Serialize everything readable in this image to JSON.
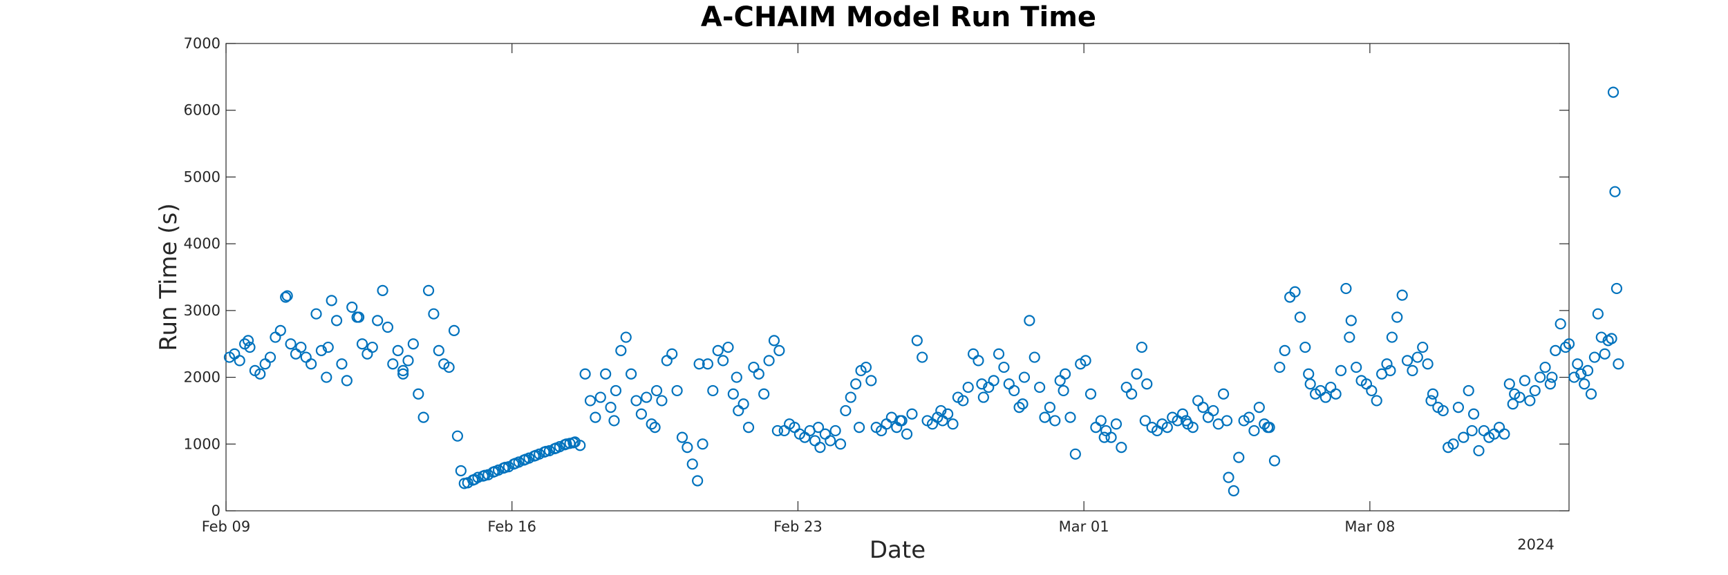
{
  "chart_data": {
    "type": "scatter",
    "title": "A-CHAIM Model Run Time",
    "xlabel": "Date",
    "ylabel": "Run Time (s)",
    "x_ticks": [
      "Feb 09",
      "Feb 16",
      "Feb 23",
      "Mar 01",
      "Mar 08"
    ],
    "x_tick_values": [
      "2024-02-09",
      "2024-02-16",
      "2024-02-23",
      "2024-03-01",
      "2024-03-08"
    ],
    "year_label": "2024",
    "xlim": [
      "2024-02-09",
      "2024-03-12T21:00"
    ],
    "ylim": [
      0,
      7000
    ],
    "y_ticks": [
      0,
      1000,
      2000,
      3000,
      4000,
      5000,
      6000,
      7000
    ],
    "grid": false,
    "marker_color": "#0072BD",
    "points": [
      [
        "2024-02-09T02:00",
        2300
      ],
      [
        "2024-02-09T05:00",
        2350
      ],
      [
        "2024-02-09T08:00",
        2250
      ],
      [
        "2024-02-09T11:00",
        2500
      ],
      [
        "2024-02-09T14:00",
        2450
      ],
      [
        "2024-02-09T17:00",
        2100
      ],
      [
        "2024-02-09T20:00",
        2050
      ],
      [
        "2024-02-09T23:00",
        2200
      ],
      [
        "2024-02-10T02:00",
        2300
      ],
      [
        "2024-02-10T05:00",
        2600
      ],
      [
        "2024-02-10T08:00",
        2700
      ],
      [
        "2024-02-10T11:00",
        3200
      ],
      [
        "2024-02-10T14:00",
        2500
      ],
      [
        "2024-02-10T17:00",
        2350
      ],
      [
        "2024-02-10T20:00",
        2450
      ],
      [
        "2024-02-10T23:00",
        2300
      ],
      [
        "2024-02-11T02:00",
        2200
      ],
      [
        "2024-02-11T05:00",
        2950
      ],
      [
        "2024-02-11T08:00",
        2400
      ],
      [
        "2024-02-11T11:00",
        2000
      ],
      [
        "2024-02-11T14:00",
        3150
      ],
      [
        "2024-02-11T17:00",
        2850
      ],
      [
        "2024-02-11T20:00",
        2200
      ],
      [
        "2024-02-11T23:00",
        1950
      ],
      [
        "2024-02-12T02:00",
        3050
      ],
      [
        "2024-02-12T05:00",
        2900
      ],
      [
        "2024-02-12T08:00",
        2500
      ],
      [
        "2024-02-12T11:00",
        2350
      ],
      [
        "2024-02-12T14:00",
        2450
      ],
      [
        "2024-02-12T17:00",
        2850
      ],
      [
        "2024-02-12T20:00",
        3300
      ],
      [
        "2024-02-12T23:00",
        2750
      ],
      [
        "2024-02-13T02:00",
        2200
      ],
      [
        "2024-02-13T05:00",
        2400
      ],
      [
        "2024-02-13T08:00",
        2050
      ],
      [
        "2024-02-13T11:00",
        2250
      ],
      [
        "2024-02-13T14:00",
        2500
      ],
      [
        "2024-02-13T17:00",
        1750
      ],
      [
        "2024-02-13T20:00",
        1400
      ],
      [
        "2024-02-13T23:00",
        3300
      ],
      [
        "2024-02-14T02:00",
        2950
      ],
      [
        "2024-02-14T05:00",
        2400
      ],
      [
        "2024-02-14T08:00",
        2200
      ],
      [
        "2024-02-14T11:00",
        2150
      ],
      [
        "2024-02-14T14:00",
        2700
      ],
      [
        "2024-02-14T16:00",
        1120
      ],
      [
        "2024-02-14T18:00",
        600
      ],
      [
        "2024-02-14T20:00",
        410
      ],
      [
        "2024-02-14T22:00",
        420
      ],
      [
        "2024-02-15T01:00",
        460
      ],
      [
        "2024-02-15T04:00",
        500
      ],
      [
        "2024-02-15T07:00",
        520
      ],
      [
        "2024-02-15T10:00",
        540
      ],
      [
        "2024-02-15T13:00",
        580
      ],
      [
        "2024-02-15T16:00",
        610
      ],
      [
        "2024-02-15T19:00",
        640
      ],
      [
        "2024-02-15T22:00",
        660
      ],
      [
        "2024-02-16T01:00",
        700
      ],
      [
        "2024-02-16T04:00",
        730
      ],
      [
        "2024-02-16T07:00",
        760
      ],
      [
        "2024-02-16T10:00",
        790
      ],
      [
        "2024-02-16T13:00",
        820
      ],
      [
        "2024-02-16T16:00",
        850
      ],
      [
        "2024-02-16T19:00",
        880
      ],
      [
        "2024-02-16T22:00",
        900
      ],
      [
        "2024-02-17T01:00",
        930
      ],
      [
        "2024-02-17T04:00",
        960
      ],
      [
        "2024-02-17T07:00",
        990
      ],
      [
        "2024-02-17T10:00",
        1010
      ],
      [
        "2024-02-17T13:00",
        1030
      ],
      [
        "2024-02-17T16:00",
        980
      ],
      [
        "2024-02-17T19:00",
        2050
      ],
      [
        "2024-02-17T22:00",
        1650
      ],
      [
        "2024-02-18T01:00",
        1400
      ],
      [
        "2024-02-18T04:00",
        1700
      ],
      [
        "2024-02-18T07:00",
        2050
      ],
      [
        "2024-02-18T10:00",
        1550
      ],
      [
        "2024-02-18T13:00",
        1800
      ],
      [
        "2024-02-18T16:00",
        2400
      ],
      [
        "2024-02-18T19:00",
        2600
      ],
      [
        "2024-02-18T22:00",
        2050
      ],
      [
        "2024-02-19T01:00",
        1650
      ],
      [
        "2024-02-19T04:00",
        1450
      ],
      [
        "2024-02-19T07:00",
        1700
      ],
      [
        "2024-02-19T10:00",
        1300
      ],
      [
        "2024-02-19T13:00",
        1800
      ],
      [
        "2024-02-19T16:00",
        1650
      ],
      [
        "2024-02-19T19:00",
        2250
      ],
      [
        "2024-02-19T22:00",
        2350
      ],
      [
        "2024-02-20T01:00",
        1800
      ],
      [
        "2024-02-20T04:00",
        1100
      ],
      [
        "2024-02-20T07:00",
        950
      ],
      [
        "2024-02-20T10:00",
        700
      ],
      [
        "2024-02-20T13:00",
        450
      ],
      [
        "2024-02-20T16:00",
        1000
      ],
      [
        "2024-02-20T19:00",
        2200
      ],
      [
        "2024-02-20T22:00",
        1800
      ],
      [
        "2024-02-21T01:00",
        2400
      ],
      [
        "2024-02-21T04:00",
        2250
      ],
      [
        "2024-02-21T07:00",
        2450
      ],
      [
        "2024-02-21T10:00",
        1750
      ],
      [
        "2024-02-21T13:00",
        1500
      ],
      [
        "2024-02-21T16:00",
        1600
      ],
      [
        "2024-02-21T19:00",
        1250
      ],
      [
        "2024-02-21T22:00",
        2150
      ],
      [
        "2024-02-22T01:00",
        2050
      ],
      [
        "2024-02-22T04:00",
        1750
      ],
      [
        "2024-02-22T07:00",
        2250
      ],
      [
        "2024-02-22T10:00",
        2550
      ],
      [
        "2024-02-22T13:00",
        2400
      ],
      [
        "2024-02-22T16:00",
        1200
      ],
      [
        "2024-02-22T19:00",
        1300
      ],
      [
        "2024-02-22T22:00",
        1250
      ],
      [
        "2024-02-23T01:00",
        1150
      ],
      [
        "2024-02-23T04:00",
        1100
      ],
      [
        "2024-02-23T07:00",
        1200
      ],
      [
        "2024-02-23T10:00",
        1050
      ],
      [
        "2024-02-23T13:00",
        950
      ],
      [
        "2024-02-23T16:00",
        1150
      ],
      [
        "2024-02-23T19:00",
        1050
      ],
      [
        "2024-02-23T22:00",
        1200
      ],
      [
        "2024-02-24T01:00",
        1000
      ],
      [
        "2024-02-24T04:00",
        1500
      ],
      [
        "2024-02-24T07:00",
        1700
      ],
      [
        "2024-02-24T10:00",
        1900
      ],
      [
        "2024-02-24T13:00",
        2100
      ],
      [
        "2024-02-24T16:00",
        2150
      ],
      [
        "2024-02-24T19:00",
        1950
      ],
      [
        "2024-02-24T22:00",
        1250
      ],
      [
        "2024-02-25T01:00",
        1200
      ],
      [
        "2024-02-25T04:00",
        1300
      ],
      [
        "2024-02-25T07:00",
        1400
      ],
      [
        "2024-02-25T10:00",
        1250
      ],
      [
        "2024-02-25T13:00",
        1350
      ],
      [
        "2024-02-25T16:00",
        1150
      ],
      [
        "2024-02-25T19:00",
        1450
      ],
      [
        "2024-02-25T22:00",
        2550
      ],
      [
        "2024-02-26T01:00",
        2300
      ],
      [
        "2024-02-26T04:00",
        1350
      ],
      [
        "2024-02-26T07:00",
        1300
      ],
      [
        "2024-02-26T10:00",
        1400
      ],
      [
        "2024-02-26T13:00",
        1350
      ],
      [
        "2024-02-26T16:00",
        1450
      ],
      [
        "2024-02-26T19:00",
        1300
      ],
      [
        "2024-02-26T22:00",
        1700
      ],
      [
        "2024-02-27T01:00",
        1650
      ],
      [
        "2024-02-27T04:00",
        1850
      ],
      [
        "2024-02-27T07:00",
        2350
      ],
      [
        "2024-02-27T10:00",
        2250
      ],
      [
        "2024-02-27T13:00",
        1700
      ],
      [
        "2024-02-27T16:00",
        1850
      ],
      [
        "2024-02-27T19:00",
        1950
      ],
      [
        "2024-02-27T22:00",
        2350
      ],
      [
        "2024-02-28T01:00",
        2150
      ],
      [
        "2024-02-28T04:00",
        1900
      ],
      [
        "2024-02-28T07:00",
        1800
      ],
      [
        "2024-02-28T10:00",
        1550
      ],
      [
        "2024-02-28T13:00",
        2000
      ],
      [
        "2024-02-28T16:00",
        2850
      ],
      [
        "2024-02-28T19:00",
        2300
      ],
      [
        "2024-02-28T22:00",
        1850
      ],
      [
        "2024-02-29T01:00",
        1400
      ],
      [
        "2024-02-29T04:00",
        1550
      ],
      [
        "2024-02-29T07:00",
        1350
      ],
      [
        "2024-02-29T10:00",
        1950
      ],
      [
        "2024-02-29T13:00",
        2050
      ],
      [
        "2024-02-29T16:00",
        1400
      ],
      [
        "2024-02-29T19:00",
        850
      ],
      [
        "2024-02-29T22:00",
        2200
      ],
      [
        "2024-03-01T01:00",
        2250
      ],
      [
        "2024-03-01T04:00",
        1750
      ],
      [
        "2024-03-01T07:00",
        1250
      ],
      [
        "2024-03-01T10:00",
        1350
      ],
      [
        "2024-03-01T13:00",
        1200
      ],
      [
        "2024-03-01T16:00",
        1100
      ],
      [
        "2024-03-01T19:00",
        1300
      ],
      [
        "2024-03-01T22:00",
        950
      ],
      [
        "2024-03-02T01:00",
        1850
      ],
      [
        "2024-03-02T04:00",
        1750
      ],
      [
        "2024-03-02T07:00",
        2050
      ],
      [
        "2024-03-02T10:00",
        2450
      ],
      [
        "2024-03-02T13:00",
        1900
      ],
      [
        "2024-03-02T16:00",
        1250
      ],
      [
        "2024-03-02T19:00",
        1200
      ],
      [
        "2024-03-02T22:00",
        1300
      ],
      [
        "2024-03-03T01:00",
        1250
      ],
      [
        "2024-03-03T04:00",
        1400
      ],
      [
        "2024-03-03T07:00",
        1350
      ],
      [
        "2024-03-03T10:00",
        1450
      ],
      [
        "2024-03-03T13:00",
        1300
      ],
      [
        "2024-03-03T16:00",
        1250
      ],
      [
        "2024-03-03T19:00",
        1650
      ],
      [
        "2024-03-03T22:00",
        1550
      ],
      [
        "2024-03-04T01:00",
        1400
      ],
      [
        "2024-03-04T04:00",
        1500
      ],
      [
        "2024-03-04T07:00",
        1300
      ],
      [
        "2024-03-04T10:00",
        1750
      ],
      [
        "2024-03-04T13:00",
        500
      ],
      [
        "2024-03-04T16:00",
        300
      ],
      [
        "2024-03-04T19:00",
        800
      ],
      [
        "2024-03-04T22:00",
        1350
      ],
      [
        "2024-03-05T01:00",
        1400
      ],
      [
        "2024-03-05T04:00",
        1200
      ],
      [
        "2024-03-05T07:00",
        1550
      ],
      [
        "2024-03-05T10:00",
        1300
      ],
      [
        "2024-03-05T13:00",
        1250
      ],
      [
        "2024-03-05T16:00",
        750
      ],
      [
        "2024-03-05T19:00",
        2150
      ],
      [
        "2024-03-05T22:00",
        2400
      ],
      [
        "2024-03-06T01:00",
        3200
      ],
      [
        "2024-03-06T04:00",
        3280
      ],
      [
        "2024-03-06T07:00",
        2900
      ],
      [
        "2024-03-06T10:00",
        2450
      ],
      [
        "2024-03-06T13:00",
        1900
      ],
      [
        "2024-03-06T16:00",
        1750
      ],
      [
        "2024-03-06T19:00",
        1800
      ],
      [
        "2024-03-06T22:00",
        1700
      ],
      [
        "2024-03-07T01:00",
        1850
      ],
      [
        "2024-03-07T04:00",
        1750
      ],
      [
        "2024-03-07T07:00",
        2100
      ],
      [
        "2024-03-07T10:00",
        3330
      ],
      [
        "2024-03-07T13:00",
        2850
      ],
      [
        "2024-03-07T16:00",
        2150
      ],
      [
        "2024-03-07T19:00",
        1950
      ],
      [
        "2024-03-07T22:00",
        1900
      ],
      [
        "2024-03-08T01:00",
        1800
      ],
      [
        "2024-03-08T04:00",
        1650
      ],
      [
        "2024-03-08T07:00",
        2050
      ],
      [
        "2024-03-08T10:00",
        2200
      ],
      [
        "2024-03-08T13:00",
        2600
      ],
      [
        "2024-03-08T16:00",
        2900
      ],
      [
        "2024-03-08T19:00",
        3230
      ],
      [
        "2024-03-08T22:00",
        2250
      ],
      [
        "2024-03-09T01:00",
        2100
      ],
      [
        "2024-03-09T04:00",
        2300
      ],
      [
        "2024-03-09T07:00",
        2450
      ],
      [
        "2024-03-09T10:00",
        2200
      ],
      [
        "2024-03-09T13:00",
        1750
      ],
      [
        "2024-03-09T16:00",
        1550
      ],
      [
        "2024-03-09T19:00",
        1500
      ],
      [
        "2024-03-09T22:00",
        950
      ],
      [
        "2024-03-10T01:00",
        1000
      ],
      [
        "2024-03-10T04:00",
        1550
      ],
      [
        "2024-03-10T07:00",
        1100
      ],
      [
        "2024-03-10T10:00",
        1800
      ],
      [
        "2024-03-10T13:00",
        1450
      ],
      [
        "2024-03-10T16:00",
        900
      ],
      [
        "2024-03-10T19:00",
        1200
      ],
      [
        "2024-03-10T22:00",
        1100
      ],
      [
        "2024-03-11T01:00",
        1150
      ],
      [
        "2024-03-11T04:00",
        1250
      ],
      [
        "2024-03-11T07:00",
        1150
      ],
      [
        "2024-03-11T10:00",
        1900
      ],
      [
        "2024-03-11T13:00",
        1750
      ],
      [
        "2024-03-11T16:00",
        1700
      ],
      [
        "2024-03-11T19:00",
        1950
      ],
      [
        "2024-03-11T22:00",
        1650
      ],
      [
        "2024-03-12T01:00",
        1800
      ],
      [
        "2024-03-12T04:00",
        2000
      ],
      [
        "2024-03-12T07:00",
        2150
      ],
      [
        "2024-03-12T10:00",
        1900
      ],
      [
        "2024-03-12T13:00",
        2400
      ],
      [
        "2024-03-12T16:00",
        2800
      ],
      [
        "2024-03-12T19:00",
        2450
      ],
      [
        "2024-03-12T21:00",
        2500
      ],
      [
        "2024-02-12T06:00",
        2900
      ],
      [
        "2024-02-10T12:00",
        3220
      ],
      [
        "2024-02-11T12:00",
        2450
      ],
      [
        "2024-02-13T08:00",
        2100
      ],
      [
        "2024-02-09T13:00",
        2550
      ],
      [
        "2024-02-15T02:00",
        470
      ],
      [
        "2024-02-15T08:00",
        530
      ],
      [
        "2024-02-15T14:00",
        590
      ],
      [
        "2024-02-15T20:00",
        650
      ],
      [
        "2024-02-16T02:00",
        710
      ],
      [
        "2024-02-16T08:00",
        770
      ],
      [
        "2024-02-16T14:00",
        830
      ],
      [
        "2024-02-16T20:00",
        890
      ],
      [
        "2024-02-17T02:00",
        940
      ],
      [
        "2024-02-17T08:00",
        1000
      ],
      [
        "2024-02-17T12:00",
        1020
      ],
      [
        "2024-02-18T12:00",
        1350
      ],
      [
        "2024-02-19T12:00",
        1250
      ],
      [
        "2024-02-20T14:00",
        2200
      ],
      [
        "2024-02-21T12:00",
        2000
      ],
      [
        "2024-02-22T12:00",
        1200
      ],
      [
        "2024-02-23T12:00",
        1250
      ],
      [
        "2024-02-24T12:00",
        1250
      ],
      [
        "2024-02-25T12:00",
        1350
      ],
      [
        "2024-02-26T12:00",
        1500
      ],
      [
        "2024-02-27T12:00",
        1900
      ],
      [
        "2024-02-28T12:00",
        1600
      ],
      [
        "2024-02-29T12:00",
        1800
      ],
      [
        "2024-03-01T12:00",
        1100
      ],
      [
        "2024-03-02T12:00",
        1350
      ],
      [
        "2024-03-03T12:00",
        1350
      ],
      [
        "2024-03-04T12:00",
        1350
      ],
      [
        "2024-03-05T12:00",
        1250
      ],
      [
        "2024-03-06T12:00",
        2050
      ],
      [
        "2024-03-07T12:00",
        2600
      ],
      [
        "2024-03-08T12:00",
        2100
      ],
      [
        "2024-03-09T12:00",
        1650
      ],
      [
        "2024-03-10T12:00",
        1200
      ],
      [
        "2024-03-11T12:00",
        1600
      ],
      [
        "2024-03-12T11:00",
        2000
      ],
      [
        "2024-03-13T00:00",
        2000
      ],
      [
        "2024-03-13T02:00",
        2200
      ],
      [
        "2024-03-13T04:00",
        2050
      ],
      [
        "2024-03-13T06:00",
        1900
      ],
      [
        "2024-03-13T08:00",
        2100
      ],
      [
        "2024-03-13T10:00",
        1750
      ],
      [
        "2024-03-13T12:00",
        2300
      ],
      [
        "2024-03-13T14:00",
        2950
      ],
      [
        "2024-03-13T16:00",
        2600
      ],
      [
        "2024-03-13T18:00",
        2350
      ],
      [
        "2024-03-13T20:00",
        2550
      ],
      [
        "2024-03-13T22:00",
        2580
      ],
      [
        "2024-03-13T23:00",
        6270
      ],
      [
        "2024-03-14T00:00",
        4780
      ],
      [
        "2024-03-14T01:00",
        3330
      ],
      [
        "2024-03-14T02:00",
        2200
      ]
    ]
  }
}
